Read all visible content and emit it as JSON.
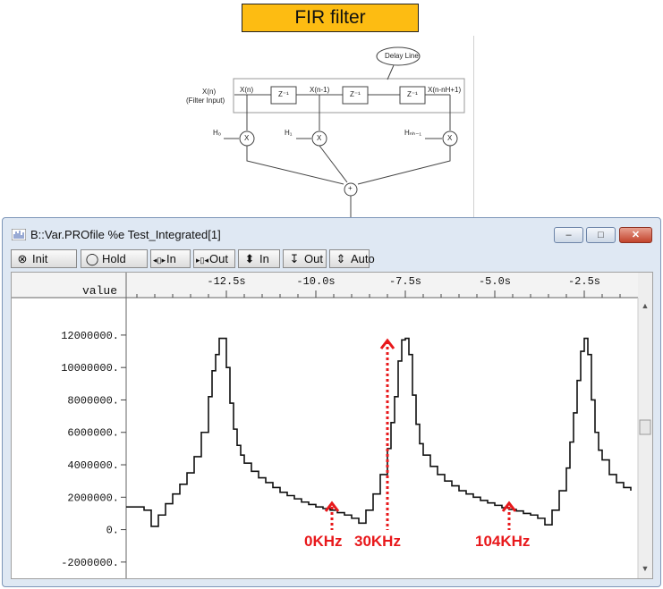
{
  "banner": {
    "title": "FIR filter"
  },
  "diagram": {
    "delay_line": "Delay Line",
    "input_label": "X(n)",
    "input_sublabel": "(Filter Input)",
    "tap0": "X(n)",
    "tap1": "X(n-1)",
    "tapN": "X(n-nH+1)",
    "delay": "Z⁻¹",
    "h0": "H₀",
    "h1": "H₁",
    "hN": "Hₙₕ₋₁",
    "mult": "X",
    "sum": "+"
  },
  "window": {
    "title": "B::Var.PROfile %e Test_Integrated[1]",
    "buttons": {
      "minimize": "–",
      "maximize": "□",
      "close": "✕"
    }
  },
  "toolbar": {
    "items": [
      {
        "label": "Init",
        "icon": "circle-x-icon",
        "glyph": "⊗"
      },
      {
        "label": "Hold",
        "icon": "circle-icon",
        "glyph": "◯"
      },
      {
        "label": "In",
        "icon": "zoom-in-horizontal-icon",
        "glyph": "◂▯▸"
      },
      {
        "label": "Out",
        "icon": "zoom-out-horizontal-icon",
        "glyph": "▸▯◂"
      },
      {
        "label": "In",
        "icon": "zoom-in-vertical-icon",
        "glyph": "⬍"
      },
      {
        "label": "Out",
        "icon": "zoom-out-vertical-icon",
        "glyph": "↧"
      },
      {
        "label": "Auto",
        "icon": "auto-scale-icon",
        "glyph": "⇕"
      }
    ]
  },
  "chart_data": {
    "type": "line",
    "ylabel": "value",
    "x_ticks": [
      "-12.5s",
      "-10.0s",
      "-7.5s",
      "-5.0s",
      "-2.5s"
    ],
    "x_tick_values": [
      -12.5,
      -10.0,
      -7.5,
      -5.0,
      -2.5
    ],
    "y_ticks": [
      "12000000.",
      "10000000.",
      "8000000.",
      "6000000.",
      "4000000.",
      "2000000.",
      "0.",
      "-2000000."
    ],
    "y_tick_values": [
      12000000,
      10000000,
      8000000,
      6000000,
      4000000,
      2000000,
      0,
      -2000000
    ],
    "xlim": [
      -15.3,
      -1.2
    ],
    "ylim": [
      -3000000,
      14200000
    ],
    "series": [
      {
        "x": [
          -15.3,
          -14.8,
          -14.6,
          -14.4,
          -14.2,
          -14.0,
          -13.8,
          -13.6,
          -13.4,
          -13.2,
          -13.0,
          -12.9,
          -12.8,
          -12.7,
          -12.6,
          -12.5,
          -12.4,
          -12.3,
          -12.2,
          -12.1,
          -12.0,
          -11.8,
          -11.6,
          -11.4,
          -11.2,
          -11.0,
          -10.8,
          -10.6,
          -10.4,
          -10.2,
          -10.0,
          -9.8,
          -9.6,
          -9.4,
          -9.2,
          -9.0,
          -8.8,
          -8.6,
          -8.4,
          -8.2,
          -8.0,
          -7.9,
          -7.8,
          -7.7,
          -7.6,
          -7.5,
          -7.4,
          -7.3,
          -7.2,
          -7.1,
          -7.0,
          -6.8,
          -6.6,
          -6.4,
          -6.2,
          -6.0,
          -5.8,
          -5.6,
          -5.4,
          -5.2,
          -5.0,
          -4.8,
          -4.6,
          -4.4,
          -4.2,
          -4.0,
          -3.8,
          -3.6,
          -3.4,
          -3.2,
          -3.0,
          -2.9,
          -2.8,
          -2.7,
          -2.6,
          -2.5,
          -2.4,
          -2.3,
          -2.2,
          -2.1,
          -2.0,
          -1.8,
          -1.6,
          -1.4,
          -1.2
        ],
        "y": [
          1400000,
          1200000,
          200000,
          900000,
          1600000,
          2200000,
          2800000,
          3500000,
          4500000,
          6000000,
          8200000,
          9800000,
          10800000,
          11800000,
          11800000,
          10000000,
          7800000,
          6200000,
          5200000,
          4600000,
          4100000,
          3600000,
          3200000,
          2900000,
          2600000,
          2300000,
          2100000,
          1900000,
          1700000,
          1550000,
          1400000,
          1300000,
          1200000,
          1050000,
          900000,
          700000,
          400000,
          1200000,
          2200000,
          3400000,
          5000000,
          6600000,
          8200000,
          10400000,
          11700000,
          11800000,
          10800000,
          8300000,
          6500000,
          5300000,
          4600000,
          3900000,
          3400000,
          3000000,
          2700000,
          2400000,
          2200000,
          2000000,
          1800000,
          1650000,
          1500000,
          1350000,
          1250000,
          1150000,
          1000000,
          900000,
          700000,
          300000,
          1200000,
          2400000,
          3800000,
          5400000,
          7200000,
          9200000,
          11000000,
          11800000,
          10800000,
          8000000,
          6000000,
          4900000,
          4300000,
          3400000,
          2900000,
          2600000,
          2400000
        ]
      }
    ],
    "annotations": [
      "0KHz",
      "30KHz",
      "104KHz"
    ],
    "grid": false
  }
}
